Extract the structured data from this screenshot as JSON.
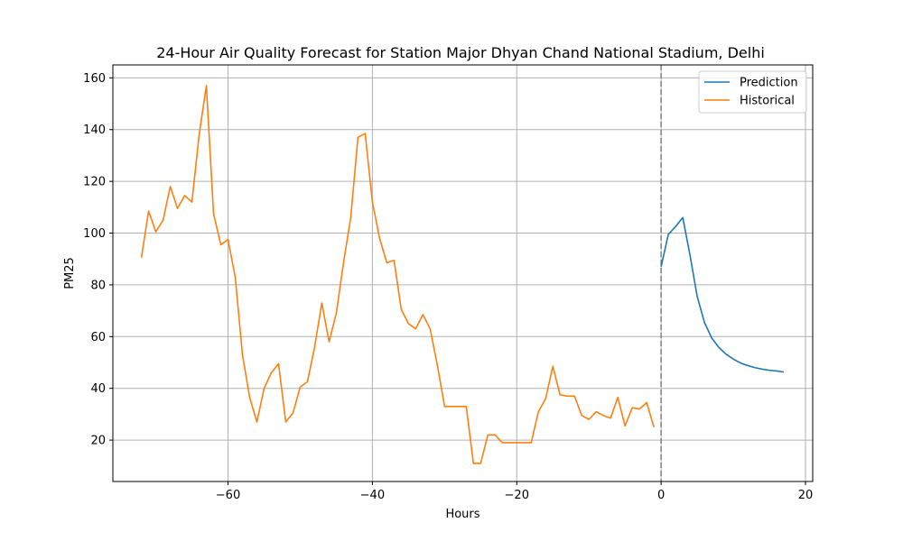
{
  "chart_data": {
    "type": "line",
    "title": "24-Hour Air Quality Forecast for Station Major Dhyan Chand National Stadium, Delhi",
    "xlabel": "Hours",
    "ylabel": "PM25",
    "xlim": [
      -75.95,
      21.0
    ],
    "ylim": [
      4,
      165
    ],
    "xticks": [
      -60,
      -40,
      -20,
      0,
      20
    ],
    "xtick_labels": [
      "−60",
      "−40",
      "−20",
      "0",
      "20"
    ],
    "yticks": [
      20,
      40,
      60,
      80,
      100,
      120,
      140,
      160
    ],
    "ytick_labels": [
      "20",
      "40",
      "60",
      "80",
      "100",
      "120",
      "140",
      "160"
    ],
    "grid": true,
    "legend_position": "top-right",
    "vline": {
      "x": 0,
      "style": "dashed",
      "color": "#808080"
    },
    "series": [
      {
        "name": "Prediction",
        "color": "#1f77b4",
        "x": [
          0,
          1,
          2,
          3,
          4,
          5,
          6,
          7,
          8,
          9,
          10,
          11,
          12,
          13,
          14,
          15,
          16,
          17
        ],
        "values": [
          87,
          99.5,
          102.5,
          106,
          91.5,
          75.5,
          65.5,
          59.5,
          55.8,
          53.2,
          51.3,
          49.8,
          48.8,
          48.0,
          47.4,
          47.0,
          46.7,
          46.3
        ]
      },
      {
        "name": "Historical",
        "color": "#ff7f0e",
        "x": [
          -72,
          -71,
          -70,
          -69,
          -68,
          -67,
          -66,
          -65,
          -64,
          -63,
          -62,
          -61,
          -60,
          -59,
          -58,
          -57,
          -56,
          -55,
          -54,
          -53,
          -52,
          -51,
          -50,
          -49,
          -48,
          -47,
          -46,
          -45,
          -44,
          -43,
          -42,
          -41,
          -40,
          -39,
          -38,
          -37,
          -36,
          -35,
          -34,
          -33,
          -32,
          -31,
          -30,
          -29,
          -28,
          -27,
          -26,
          -25,
          -24,
          -23,
          -22,
          -21,
          -20,
          -19,
          -18,
          -17,
          -16,
          -15,
          -14,
          -13,
          -12,
          -11,
          -10,
          -9,
          -8,
          -7,
          -6,
          -5,
          -4,
          -3,
          -2,
          -1
        ],
        "values": [
          90.5,
          108.5,
          100.5,
          105,
          118,
          109.5,
          114.5,
          112,
          138,
          157,
          107.5,
          95.5,
          97.5,
          83,
          53,
          36.5,
          27,
          40,
          46,
          49.5,
          27,
          30.5,
          40.5,
          42.5,
          56,
          73,
          58,
          69,
          88.5,
          106,
          137,
          138.5,
          112,
          98,
          88.5,
          89.5,
          70.5,
          65,
          63,
          68.5,
          63,
          49,
          33,
          33,
          33,
          33,
          11,
          11,
          22,
          22,
          19,
          19,
          19,
          19,
          19,
          31,
          36,
          48.5,
          37.5,
          37,
          37,
          29.5,
          28,
          31,
          29.5,
          28.5,
          36.5,
          25.5,
          32.5,
          32,
          34.5,
          25
        ]
      }
    ]
  }
}
